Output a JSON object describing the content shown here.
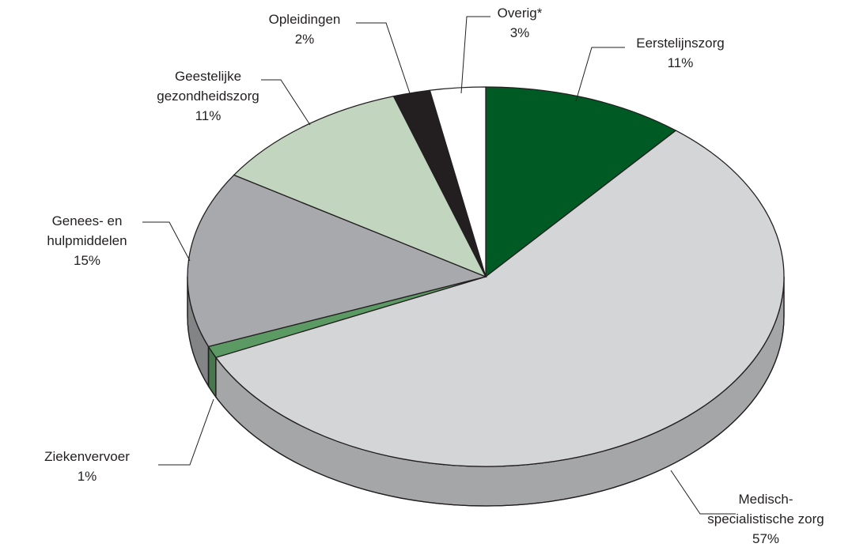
{
  "chart_data": {
    "type": "pie3d",
    "categories": [
      "Eerstelijnszorg",
      "Medisch-\nspecialistische zorg",
      "Ziekenvervoer",
      "Genees- en\nhulpmiddelen",
      "Geestelijke\ngezondheidszorg",
      "Opleidingen",
      "Overig*"
    ],
    "values": [
      11,
      57,
      1,
      15,
      11,
      2,
      3
    ],
    "value_labels": [
      "11%",
      "57%",
      "1%",
      "15%",
      "11%",
      "2%",
      "3%"
    ],
    "colors": [
      "#005a23",
      "#d4d5d7",
      "#5c9a63",
      "#a7a9ac",
      "#c2d6bf",
      "#231f20",
      "#ffffff"
    ]
  }
}
